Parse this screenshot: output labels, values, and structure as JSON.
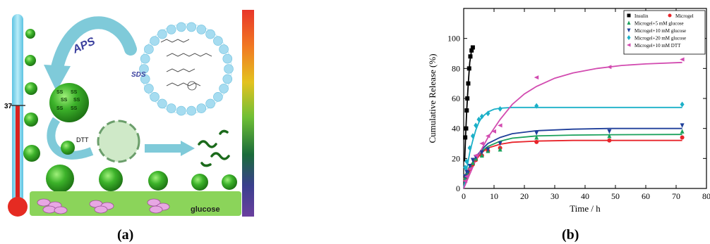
{
  "panel_a": {
    "label": "(a)",
    "thermometer_mark": "37",
    "aps_label": "APS",
    "sds_label": "SDS",
    "dtt_label": "DTT",
    "ss_label": "SS",
    "glucose_label": "glucose",
    "colors": {
      "sphere": "#3cb22a",
      "sphere_dark": "#1f7a14",
      "mercury": "#d9221f",
      "thermo_glass": "#7fd3ea",
      "arrow": "#7fcad9",
      "liposome": "#9fd9ef",
      "base_bar": "#8bd45a"
    }
  },
  "panel_b": {
    "label": "(b)"
  },
  "chart_data": {
    "type": "scatter",
    "xlabel": "Time / h",
    "ylabel": "Cumulative Release (%)",
    "xlim": [
      0,
      80
    ],
    "ylim": [
      0,
      120
    ],
    "xticks": [
      "0",
      "10",
      "20",
      "30",
      "40",
      "50",
      "60",
      "70",
      "80"
    ],
    "yticks": [
      "0",
      "20",
      "40",
      "60",
      "80",
      "100"
    ],
    "legend_position": "top-right",
    "series": [
      {
        "name": "Insulin",
        "marker": "square",
        "color": "#000000",
        "points": [
          [
            0.5,
            34
          ],
          [
            0.8,
            40
          ],
          [
            1.0,
            52
          ],
          [
            1.2,
            60
          ],
          [
            1.5,
            70
          ],
          [
            1.8,
            80
          ],
          [
            2.2,
            88
          ],
          [
            2.6,
            92
          ],
          [
            3.0,
            94
          ]
        ],
        "fit": [
          [
            0.3,
            18
          ],
          [
            0.7,
            38
          ],
          [
            1.0,
            52
          ],
          [
            1.5,
            70
          ],
          [
            2.0,
            84
          ],
          [
            2.5,
            91
          ],
          [
            3.0,
            94
          ]
        ]
      },
      {
        "name": "Microgel",
        "marker": "circle",
        "color": "#e8242a",
        "points": [
          [
            0.5,
            6
          ],
          [
            1,
            9
          ],
          [
            2,
            13
          ],
          [
            3,
            16
          ],
          [
            4,
            19
          ],
          [
            6,
            22
          ],
          [
            8,
            25
          ],
          [
            12,
            27
          ],
          [
            24,
            31
          ],
          [
            48,
            32
          ],
          [
            72,
            34
          ]
        ],
        "fit": [
          [
            0,
            0
          ],
          [
            2,
            12
          ],
          [
            4,
            19
          ],
          [
            6,
            24
          ],
          [
            8,
            27
          ],
          [
            12,
            29.5
          ],
          [
            16,
            30.8
          ],
          [
            24,
            31.6
          ],
          [
            36,
            32
          ],
          [
            48,
            32
          ],
          [
            72,
            32
          ]
        ]
      },
      {
        "name": "Microgel+5 mM glucose",
        "marker": "triangle-up",
        "color": "#19a15b",
        "points": [
          [
            0.5,
            7
          ],
          [
            1,
            10
          ],
          [
            2,
            14
          ],
          [
            3,
            17
          ],
          [
            4,
            20
          ],
          [
            6,
            22
          ],
          [
            8,
            25
          ],
          [
            12,
            26
          ],
          [
            24,
            34
          ],
          [
            48,
            35
          ],
          [
            72,
            38
          ]
        ],
        "fit": [
          [
            0,
            0
          ],
          [
            2,
            13
          ],
          [
            4,
            20
          ],
          [
            6,
            25
          ],
          [
            8,
            28
          ],
          [
            12,
            31.5
          ],
          [
            16,
            33.5
          ],
          [
            24,
            35
          ],
          [
            36,
            35.6
          ],
          [
            48,
            35.8
          ],
          [
            72,
            36
          ]
        ]
      },
      {
        "name": "Microgel+10 mM glucose",
        "marker": "triangle-down",
        "color": "#1f3f9a",
        "points": [
          [
            0.5,
            8
          ],
          [
            1,
            11
          ],
          [
            2,
            15
          ],
          [
            3,
            19
          ],
          [
            4,
            21
          ],
          [
            6,
            24
          ],
          [
            8,
            26
          ],
          [
            12,
            30
          ],
          [
            24,
            37
          ],
          [
            48,
            38
          ],
          [
            72,
            42
          ]
        ],
        "fit": [
          [
            0,
            0
          ],
          [
            2,
            14
          ],
          [
            4,
            21
          ],
          [
            6,
            26
          ],
          [
            8,
            30
          ],
          [
            12,
            34
          ],
          [
            16,
            36.5
          ],
          [
            24,
            38.5
          ],
          [
            36,
            39.5
          ],
          [
            48,
            40
          ],
          [
            72,
            40
          ]
        ]
      },
      {
        "name": "Microgel+20 mM glucose",
        "marker": "diamond",
        "color": "#1bb0c8",
        "points": [
          [
            0.5,
            14
          ],
          [
            1,
            18
          ],
          [
            2,
            27
          ],
          [
            3,
            35
          ],
          [
            4,
            42
          ],
          [
            5,
            46
          ],
          [
            6,
            48
          ],
          [
            8,
            50
          ],
          [
            12,
            53
          ],
          [
            24,
            55
          ],
          [
            72,
            56
          ]
        ],
        "fit": [
          [
            0,
            0
          ],
          [
            1,
            13
          ],
          [
            2,
            24
          ],
          [
            3,
            32
          ],
          [
            4,
            39
          ],
          [
            5,
            44
          ],
          [
            6,
            47.5
          ],
          [
            8,
            51
          ],
          [
            10,
            52.8
          ],
          [
            12,
            53.5
          ],
          [
            16,
            54
          ],
          [
            24,
            54
          ],
          [
            72,
            54
          ]
        ]
      },
      {
        "name": "Microgel+10 mM DTT",
        "marker": "triangle-left",
        "color": "#d24bb0",
        "points": [
          [
            0.5,
            5
          ],
          [
            1,
            8
          ],
          [
            2,
            13
          ],
          [
            4,
            22
          ],
          [
            6,
            30
          ],
          [
            8,
            35
          ],
          [
            10,
            38
          ],
          [
            12,
            42
          ],
          [
            24,
            74
          ],
          [
            48,
            81
          ],
          [
            72,
            86
          ]
        ],
        "fit": [
          [
            0,
            0
          ],
          [
            4,
            19
          ],
          [
            8,
            34
          ],
          [
            12,
            46
          ],
          [
            16,
            56
          ],
          [
            20,
            63
          ],
          [
            24,
            68
          ],
          [
            30,
            73.5
          ],
          [
            36,
            77
          ],
          [
            44,
            80
          ],
          [
            52,
            82
          ],
          [
            60,
            83
          ],
          [
            72,
            84
          ]
        ]
      }
    ]
  }
}
